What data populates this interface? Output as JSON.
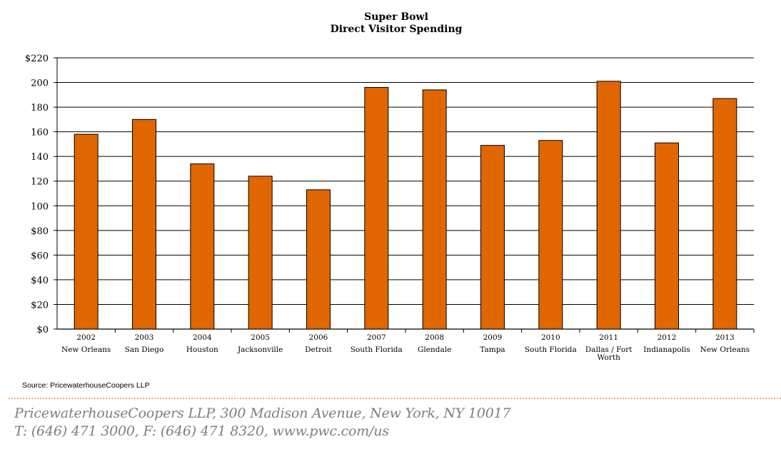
{
  "chart_data": {
    "type": "bar",
    "title": "Super Bowl",
    "subtitle": "Direct Visitor Spending",
    "categories": [
      {
        "year": "2002",
        "city": [
          "New Orleans"
        ]
      },
      {
        "year": "2003",
        "city": [
          "San Diego"
        ]
      },
      {
        "year": "2004",
        "city": [
          "Houston"
        ]
      },
      {
        "year": "2005",
        "city": [
          "Jacksonville"
        ]
      },
      {
        "year": "2006",
        "city": [
          "Detroit"
        ]
      },
      {
        "year": "2007",
        "city": [
          "South Florida"
        ]
      },
      {
        "year": "2008",
        "city": [
          "Glendale"
        ]
      },
      {
        "year": "2009",
        "city": [
          "Tampa"
        ]
      },
      {
        "year": "2010",
        "city": [
          "South Florida"
        ]
      },
      {
        "year": "2011",
        "city": [
          "Dallas / Fort",
          "Worth"
        ]
      },
      {
        "year": "2012",
        "city": [
          "Indianapolis"
        ]
      },
      {
        "year": "2013",
        "city": [
          "New Orleans"
        ]
      }
    ],
    "values": [
      158,
      170,
      134,
      124,
      113,
      196,
      194,
      149,
      153,
      201,
      151,
      187
    ],
    "ylim": [
      0,
      220
    ],
    "yticks": [
      "$0",
      "$20",
      "$40",
      "$60",
      "$80",
      "100",
      "120",
      "140",
      "160",
      "180",
      "200",
      "$220"
    ],
    "ytick_values": [
      0,
      20,
      40,
      60,
      80,
      100,
      120,
      140,
      160,
      180,
      200,
      220
    ],
    "grid": true,
    "bar_color": "#e06600",
    "xlabel": "",
    "ylabel": ""
  },
  "source": "Source:  PricewaterhouseCoopers LLP",
  "footer": {
    "line1": "PricewaterhouseCoopers LLP, 300 Madison Avenue, New York, NY 10017",
    "line2": "T: (646) 471 3000, F: (646) 471 8320, www.pwc.com/us"
  }
}
